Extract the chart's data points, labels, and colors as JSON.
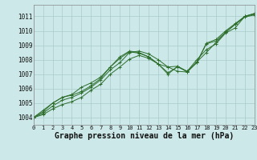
{
  "title": "Graphe pression niveau de la mer (hPa)",
  "bg_color": "#cce8e8",
  "grid_color": "#aacccc",
  "line_color": "#2d6e2d",
  "marker_color": "#2d6e2d",
  "xmin": 0,
  "xmax": 23,
  "ymin": 1003.5,
  "ymax": 1011.8,
  "yticks": [
    1004,
    1005,
    1006,
    1007,
    1008,
    1009,
    1010,
    1011
  ],
  "xticks": [
    0,
    1,
    2,
    3,
    4,
    5,
    6,
    7,
    8,
    9,
    10,
    11,
    12,
    13,
    14,
    15,
    16,
    17,
    18,
    19,
    20,
    21,
    22,
    23
  ],
  "series": [
    [
      1004.0,
      1004.2,
      1004.6,
      1004.9,
      1005.1,
      1005.4,
      1005.9,
      1006.3,
      1007.0,
      1007.5,
      1008.05,
      1008.3,
      1008.1,
      1007.7,
      1007.5,
      1007.55,
      1007.2,
      1008.0,
      1008.7,
      1009.1,
      1009.85,
      1010.2,
      1011.0,
      1011.2
    ],
    [
      1004.0,
      1004.3,
      1004.8,
      1005.2,
      1005.4,
      1005.7,
      1006.1,
      1006.6,
      1007.3,
      1007.8,
      1008.5,
      1008.6,
      1008.4,
      1008.0,
      1007.5,
      1007.2,
      1007.15,
      1007.85,
      1008.5,
      1009.2,
      1009.9,
      1010.45,
      1011.0,
      1011.15
    ],
    [
      1004.0,
      1004.4,
      1005.0,
      1005.4,
      1005.55,
      1005.8,
      1006.2,
      1006.7,
      1007.5,
      1008.1,
      1008.55,
      1008.45,
      1008.2,
      1007.7,
      1007.0,
      1007.55,
      1007.15,
      1007.8,
      1009.15,
      1009.4,
      1010.0,
      1010.5,
      1011.0,
      1011.2
    ],
    [
      1004.0,
      1004.5,
      1005.0,
      1005.4,
      1005.6,
      1006.1,
      1006.4,
      1006.8,
      1007.5,
      1008.2,
      1008.6,
      1008.5,
      1008.2,
      1007.7,
      1007.1,
      1007.5,
      1007.2,
      1007.8,
      1009.1,
      1009.3,
      1009.9,
      1010.45,
      1010.95,
      1011.1
    ]
  ],
  "title_fontsize": 7,
  "tick_fontsize": 5,
  "xlabel_pad": 1
}
